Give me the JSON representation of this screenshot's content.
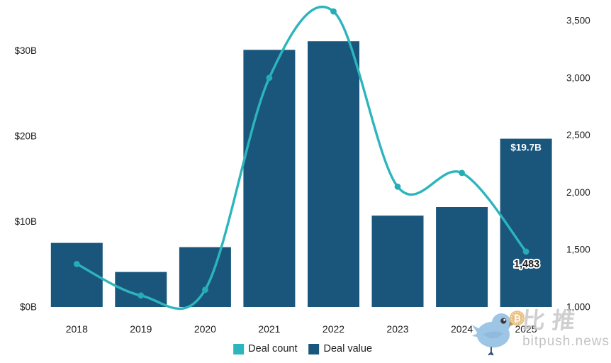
{
  "chart_data": {
    "type": "combo",
    "subtypes": [
      "bar",
      "line"
    ],
    "x": [
      "2018",
      "2019",
      "2020",
      "2021",
      "2022",
      "2023",
      "2024",
      "2025"
    ],
    "series": [
      {
        "name": "Deal value",
        "type": "bar",
        "axis": "left",
        "unit": "USD billions",
        "values": [
          7.5,
          4.1,
          7.0,
          30.1,
          31.1,
          10.7,
          11.7,
          19.7
        ]
      },
      {
        "name": "Deal count",
        "type": "line",
        "axis": "right",
        "values": [
          1375,
          1100,
          1150,
          3000,
          3580,
          2050,
          2170,
          1483
        ]
      }
    ],
    "left_axis": {
      "ticks": [
        "$0B",
        "$10B",
        "$20B",
        "$30B"
      ],
      "values": [
        0,
        10,
        20,
        30
      ]
    },
    "right_axis": {
      "ticks": [
        "1,000",
        "1,500",
        "2,000",
        "2,500",
        "3,000",
        "3,500"
      ],
      "values": [
        1000,
        1500,
        2000,
        2500,
        3000,
        3500
      ]
    },
    "annotations": [
      {
        "target": "bar-2025",
        "text": "$19.7B"
      },
      {
        "target": "line-2025",
        "text": "1,483"
      }
    ],
    "legend": [
      {
        "label": "Deal count",
        "color": "#2cb5bc"
      },
      {
        "label": "Deal value",
        "color": "#1a567c"
      }
    ],
    "legend_position": "bottom-center",
    "grid": false,
    "title": ""
  },
  "colors": {
    "bar": "#1a567c",
    "line": "#2cb5bc",
    "dot": "#24adb4",
    "axis_text": "#1d1d1d",
    "bar_label_text": "#ffffff",
    "line_label_text": "#1c1c1c",
    "watermark_gray": "#c7c7c7",
    "bird_blue": "#9dc5e6",
    "coin_gold": "#e7c287"
  },
  "watermark": {
    "cn": "比推",
    "domain": "bitpush.news",
    "bitcoin_symbol": "₿"
  }
}
